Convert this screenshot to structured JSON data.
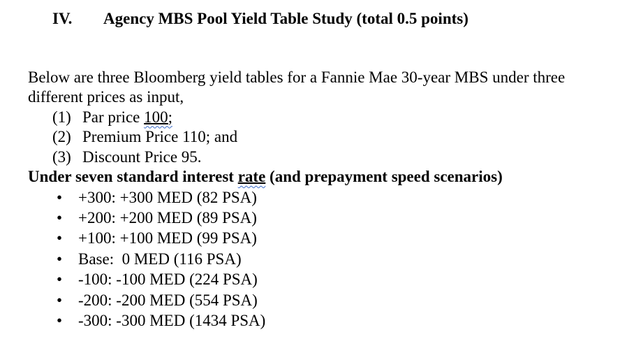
{
  "document": {
    "heading": {
      "number": "IV.",
      "title": "Agency MBS Pool Yield Table Study (total 0.5 points)"
    },
    "intro": {
      "lines": [
        "Below are three Bloomberg yield tables for a Fannie Mae 30-year MBS under three",
        "different prices as input,"
      ]
    },
    "price_list": [
      {
        "marker": "(1)",
        "pre": "Par price ",
        "underlined": "100;",
        "post": ""
      },
      {
        "marker": "(2)",
        "pre": "Premium Price 110; and",
        "underlined": "",
        "post": ""
      },
      {
        "marker": "(3)",
        "pre": "Discount Price 95.",
        "underlined": "",
        "post": ""
      }
    ],
    "scenario_heading": {
      "pre": "Under seven standard interest ",
      "underlined": "rate",
      "post": " (and prepayment speed scenarios)"
    },
    "bullet_char": "•",
    "scenarios": [
      "+300: +300 MED (82 PSA)",
      "+200: +200 MED (89 PSA)",
      "+100: +100 MED (99 PSA)",
      "Base:  0 MED (116 PSA)",
      "-100: -100 MED (224 PSA)",
      "-200: -200 MED (554 PSA)",
      "-300: -300 MED (1434 PSA)"
    ],
    "colors": {
      "text": "#000000",
      "background": "#ffffff",
      "grammar_underline": "#3a6bc9"
    }
  }
}
